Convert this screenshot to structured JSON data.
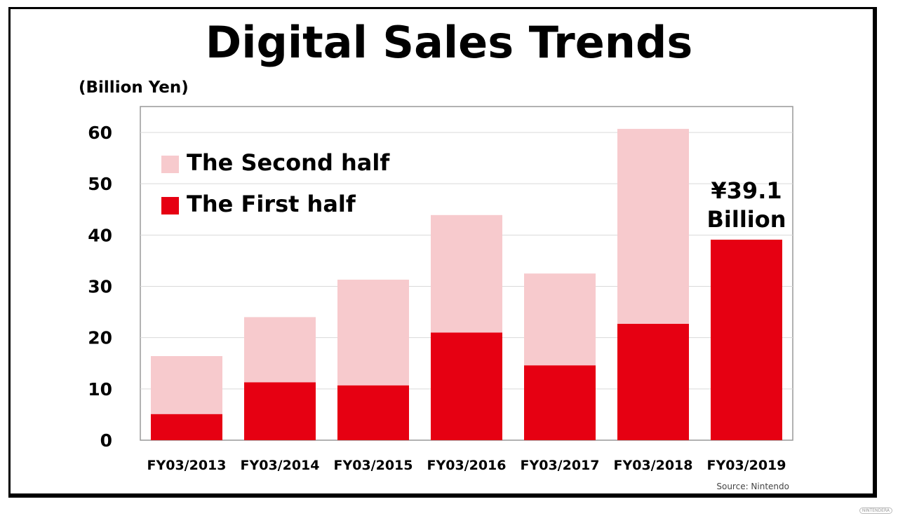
{
  "chart_data": {
    "type": "bar",
    "stacked": true,
    "title": "Digital Sales Trends",
    "ylabel": "(Billion Yen)",
    "xlabel": "",
    "ylim": [
      0,
      65
    ],
    "yticks": [
      0,
      10,
      20,
      30,
      40,
      50,
      60
    ],
    "grid": true,
    "legend": "top-left",
    "categories": [
      "FY03/2013",
      "FY03/2014",
      "FY03/2015",
      "FY03/2016",
      "FY03/2017",
      "FY03/2018",
      "FY03/2019"
    ],
    "series": [
      {
        "name": "The First half",
        "color": "#e60012",
        "values": [
          5.1,
          11.3,
          10.7,
          21.0,
          14.6,
          22.7,
          39.1
        ]
      },
      {
        "name": "The Second half",
        "color": "#f7cacd",
        "values": [
          11.3,
          12.7,
          20.6,
          22.9,
          17.9,
          38.0,
          null
        ]
      }
    ],
    "annotation": {
      "line1": "¥39.1",
      "line2": "Billion"
    },
    "source": "Source: Nintendo"
  },
  "watermark": "NINTENDERA"
}
